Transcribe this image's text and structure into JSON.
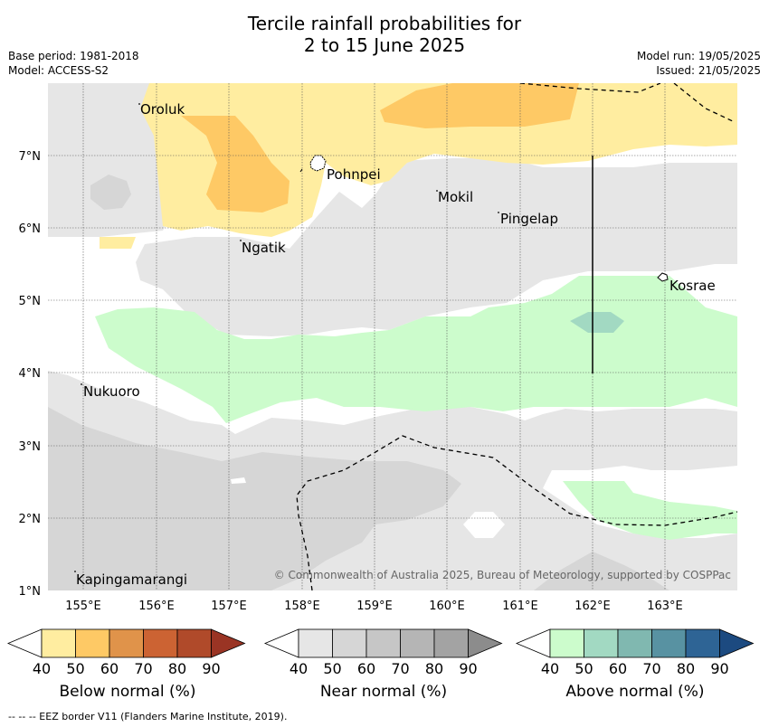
{
  "title_line1": "Tercile rainfall probabilities for",
  "title_line2": "2 to 15 June 2025",
  "base_period": "Base period: 1981-2018",
  "model": "Model: ACCESS-S2",
  "model_run": "Model run: 19/05/2025",
  "issued": "Issued: 21/05/2025",
  "axes": {
    "x_ticks": [
      "155°E",
      "156°E",
      "157°E",
      "158°E",
      "159°E",
      "160°E",
      "161°E",
      "162°E",
      "163°E"
    ],
    "y_ticks": [
      "7°N",
      "6°N",
      "5°N",
      "4°N",
      "3°N",
      "2°N",
      "1°N"
    ],
    "lon_range": [
      154.5,
      164.0
    ],
    "lat_range": [
      1.0,
      8.0
    ],
    "grid": true
  },
  "places": [
    {
      "name": "Oroluk",
      "lon": 155.75,
      "lat": 7.7
    },
    {
      "name": "Pohnpei",
      "lon": 158.3,
      "lat": 6.85
    },
    {
      "name": "Mokil",
      "lon": 159.8,
      "lat": 6.4
    },
    {
      "name": "Pingelap",
      "lon": 160.7,
      "lat": 6.2
    },
    {
      "name": "Ngatik",
      "lon": 157.15,
      "lat": 5.8
    },
    {
      "name": "Kosrae",
      "lon": 163.0,
      "lat": 5.3
    },
    {
      "name": "Nukuoro",
      "lon": 154.95,
      "lat": 3.85
    },
    {
      "name": "Kapingamarangi",
      "lon": 154.85,
      "lat": 1.1
    }
  ],
  "copyright": "© Commonwealth of Australia 2025, Bureau of Meteorology, supported by COSPPac",
  "colorbars": [
    {
      "label": "Below normal (%)",
      "ticks": [
        "40",
        "50",
        "60",
        "70",
        "80",
        "90"
      ],
      "colors": [
        "#ffffff",
        "#ffeda0",
        "#fec965",
        "#e0934a",
        "#cc6333",
        "#b04a2a",
        "#9a3424"
      ]
    },
    {
      "label": "Near normal (%)",
      "ticks": [
        "40",
        "50",
        "60",
        "70",
        "80",
        "90"
      ],
      "colors": [
        "#ffffff",
        "#e6e6e6",
        "#d6d6d6",
        "#c6c6c6",
        "#b5b5b5",
        "#a3a3a3",
        "#8c8c8c"
      ]
    },
    {
      "label": "Above normal (%)",
      "ticks": [
        "40",
        "50",
        "60",
        "70",
        "80",
        "90"
      ],
      "colors": [
        "#ffffff",
        "#ccfccc",
        "#a2d9c2",
        "#80b8b0",
        "#5892a2",
        "#2e6495",
        "#1c4a80"
      ]
    }
  ],
  "footnote": "--  --  -- EEZ border V11 (Flanders Marine Institute, 2019)."
}
